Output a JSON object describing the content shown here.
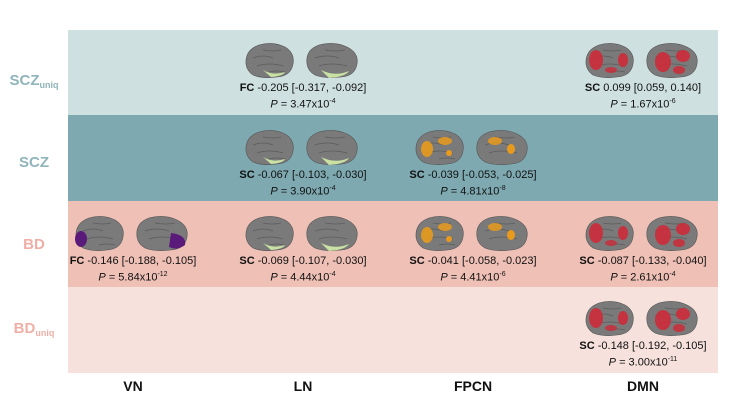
{
  "colors": {
    "row_scz_uniq": "#cfe0e1",
    "row_scz": "#7ea9b0",
    "row_bd": "#efc0b6",
    "row_bd_uniq": "#f6e1dc",
    "label_scz": "#8fb4ba",
    "label_bd": "#eeb0a6",
    "brain_gray": "#7a7a7a",
    "highlight_green": "#c9e2a4",
    "highlight_orange": "#e89a1c",
    "highlight_red": "#cc2b38",
    "highlight_purple": "#5a1a7a"
  },
  "rows": [
    {
      "label": "SCZ",
      "sub": "uniq"
    },
    {
      "label": "SCZ",
      "sub": ""
    },
    {
      "label": "BD",
      "sub": ""
    },
    {
      "label": "BD",
      "sub": "uniq"
    }
  ],
  "columns": [
    "VN",
    "LN",
    "FPCN",
    "DMN"
  ],
  "cells": {
    "scz_uniq_ln": {
      "measure": "FC",
      "stat": " -0.205 [-0.317, -0.092]",
      "p_label": "P",
      "p_text": " = 3.47x10",
      "p_exp": "-4",
      "highlight": "green"
    },
    "scz_uniq_dmn": {
      "measure": "SC",
      "stat": " 0.099 [0.059, 0.140]",
      "p_label": "P",
      "p_text": " = 1.67x10",
      "p_exp": "-6",
      "highlight": "red"
    },
    "scz_ln": {
      "measure": "SC",
      "stat": " -0.067 [-0.103, -0.030]",
      "p_label": "P",
      "p_text": " = 3.90x10",
      "p_exp": "-4",
      "highlight": "green"
    },
    "scz_fpcn": {
      "measure": "SC",
      "stat": " -0.039 [-0.053, -0.025]",
      "p_label": "P",
      "p_text": " = 4.81x10",
      "p_exp": "-8",
      "highlight": "orange"
    },
    "bd_vn": {
      "measure": "FC",
      "stat": " -0.146 [-0.188, -0.105]",
      "p_label": "P",
      "p_text": " = 5.84x10",
      "p_exp": "-12",
      "highlight": "purple"
    },
    "bd_ln": {
      "measure": "SC",
      "stat": " -0.069 [-0.107, -0.030]",
      "p_label": "P",
      "p_text": " = 4.44x10",
      "p_exp": "-4",
      "highlight": "green"
    },
    "bd_fpcn": {
      "measure": "SC",
      "stat": " -0.041 [-0.058, -0.023]",
      "p_label": "P",
      "p_text": " = 4.41x10",
      "p_exp": "-6",
      "highlight": "orange"
    },
    "bd_dmn": {
      "measure": "SC",
      "stat": " -0.087 [-0.133, -0.040]",
      "p_label": "P",
      "p_text": " = 2.61x10",
      "p_exp": "-4",
      "highlight": "red"
    },
    "bd_uniq_dmn": {
      "measure": "SC",
      "stat": " -0.148 [-0.192, -0.105]",
      "p_label": "P",
      "p_text": " = 3.00x10",
      "p_exp": "-11",
      "highlight": "red"
    }
  }
}
